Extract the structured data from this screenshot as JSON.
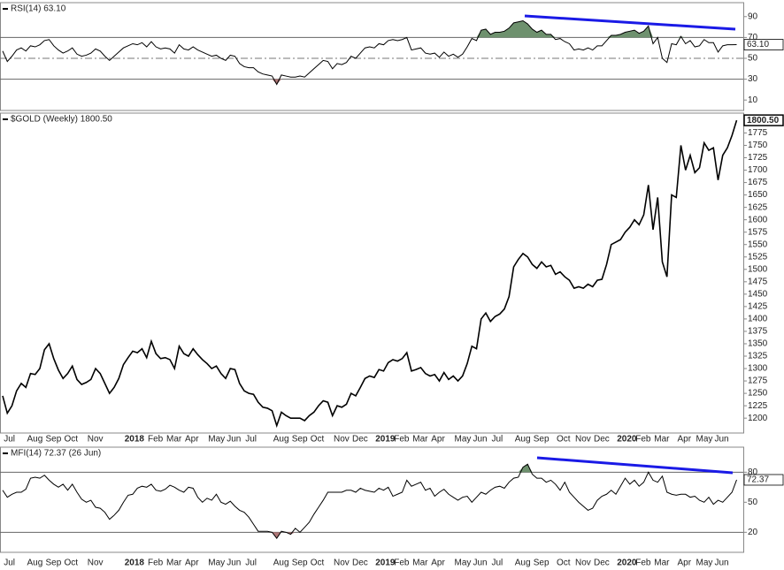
{
  "chart_data": [
    {
      "type": "line",
      "title": "RSI(14) 63.10",
      "last_value_label": "63.10",
      "color": "#000000",
      "ylim": [
        0,
        100
      ],
      "yticks": [
        10,
        30,
        50,
        70,
        90
      ],
      "overbought": 70,
      "midline": 50,
      "oversold": 30,
      "over_color": "#6e916e",
      "under_color": "#b07878",
      "values": [
        57,
        47,
        52,
        58,
        60,
        57,
        62,
        61,
        63,
        67,
        68,
        62,
        58,
        55,
        57,
        60,
        54,
        52,
        53,
        55,
        59,
        57,
        52,
        48,
        52,
        56,
        60,
        62,
        64,
        63,
        65,
        61,
        66,
        61,
        59,
        60,
        59,
        55,
        63,
        59,
        58,
        61,
        58,
        56,
        54,
        52,
        53,
        50,
        48,
        53,
        52,
        45,
        42,
        41,
        41,
        37,
        35,
        34,
        33,
        25,
        34,
        33,
        32,
        32,
        33,
        32,
        36,
        40,
        44,
        48,
        47,
        40,
        45,
        44,
        46,
        52,
        50,
        55,
        60,
        61,
        60,
        64,
        63,
        67,
        68,
        67,
        68,
        70,
        58,
        59,
        60,
        55,
        54,
        55,
        51,
        56,
        52,
        54,
        51,
        54,
        61,
        69,
        67,
        77,
        78,
        73,
        75,
        75,
        76,
        79,
        84,
        85,
        86,
        83,
        78,
        75,
        77,
        73,
        73,
        68,
        69,
        66,
        64,
        58,
        59,
        58,
        60,
        58,
        62,
        62,
        67,
        72,
        72,
        73,
        75,
        76,
        77,
        74,
        76,
        81,
        64,
        70,
        50,
        46,
        64,
        63,
        71,
        64,
        67,
        61,
        62,
        68,
        65,
        65,
        56,
        62,
        63,
        63,
        63.1
      ]
    },
    {
      "type": "line",
      "title": "$GOLD (Weekly) 1800.50",
      "last_value_label": "1800.50",
      "color": "#000000",
      "ylim": [
        1170,
        1815
      ],
      "yticks": [
        1200,
        1225,
        1250,
        1275,
        1300,
        1325,
        1350,
        1375,
        1400,
        1425,
        1450,
        1475,
        1500,
        1525,
        1550,
        1575,
        1600,
        1625,
        1650,
        1675,
        1700,
        1725,
        1750,
        1775
      ],
      "categories": [
        null,
        "Jul",
        null,
        null,
        null,
        null,
        "Aug",
        null,
        null,
        null,
        "Sep",
        null,
        null,
        null,
        "Oct",
        null,
        null,
        null,
        null,
        "Nov",
        null,
        null,
        null,
        null,
        null,
        null,
        null,
        "2018",
        null,
        null,
        null,
        null,
        "Feb",
        null,
        null,
        null,
        "Mar",
        null,
        null,
        null,
        "Apr",
        null,
        null,
        null,
        null,
        "May",
        null,
        null,
        null,
        "Jun",
        null,
        null,
        null,
        "Jul",
        null,
        null,
        null,
        null,
        null,
        "Aug",
        null,
        null,
        null,
        "Sep",
        null,
        null,
        null,
        "Oct",
        null,
        null,
        null,
        null,
        "Nov",
        null,
        null,
        null,
        "Dec",
        null,
        null,
        null,
        null,
        "2019",
        null,
        null,
        null,
        "Feb",
        null,
        null,
        null,
        "Mar",
        null,
        null,
        null,
        "Apr",
        null,
        null,
        null,
        null,
        "May",
        null,
        null,
        null,
        "Jun",
        null,
        null,
        null,
        "Jul",
        null,
        null,
        null,
        null,
        "Aug",
        null,
        null,
        null,
        "Sep",
        null,
        null,
        null,
        null,
        "Oct",
        null,
        null,
        null,
        "Nov",
        null,
        null,
        null,
        "Dec",
        null,
        null,
        null,
        null,
        "2020",
        null,
        null,
        null,
        "Feb",
        null,
        null,
        null,
        "Mar",
        null,
        null,
        null,
        null,
        "Apr",
        null,
        null,
        null,
        "May",
        null,
        null,
        null,
        "Jun",
        null,
        null,
        null,
        null
      ],
      "values": [
        1245,
        1210,
        1225,
        1255,
        1270,
        1262,
        1290,
        1288,
        1300,
        1338,
        1350,
        1320,
        1297,
        1280,
        1290,
        1305,
        1278,
        1268,
        1272,
        1278,
        1300,
        1290,
        1270,
        1250,
        1262,
        1280,
        1308,
        1322,
        1335,
        1332,
        1340,
        1322,
        1355,
        1330,
        1320,
        1322,
        1318,
        1300,
        1345,
        1330,
        1325,
        1340,
        1328,
        1318,
        1310,
        1300,
        1305,
        1290,
        1280,
        1300,
        1298,
        1270,
        1255,
        1250,
        1248,
        1232,
        1222,
        1220,
        1215,
        1185,
        1212,
        1205,
        1200,
        1200,
        1200,
        1195,
        1205,
        1212,
        1225,
        1235,
        1232,
        1205,
        1225,
        1222,
        1228,
        1250,
        1245,
        1262,
        1280,
        1285,
        1282,
        1298,
        1295,
        1312,
        1318,
        1315,
        1320,
        1332,
        1295,
        1298,
        1302,
        1290,
        1285,
        1288,
        1275,
        1292,
        1278,
        1285,
        1275,
        1285,
        1310,
        1345,
        1340,
        1400,
        1412,
        1395,
        1405,
        1410,
        1420,
        1445,
        1505,
        1520,
        1532,
        1525,
        1510,
        1502,
        1515,
        1505,
        1508,
        1490,
        1495,
        1485,
        1478,
        1462,
        1465,
        1462,
        1470,
        1465,
        1478,
        1480,
        1510,
        1550,
        1555,
        1560,
        1575,
        1585,
        1600,
        1590,
        1610,
        1670,
        1580,
        1645,
        1515,
        1485,
        1650,
        1645,
        1750,
        1700,
        1730,
        1695,
        1705,
        1755,
        1740,
        1745,
        1680,
        1730,
        1745,
        1770,
        1800.5
      ]
    },
    {
      "type": "line",
      "title": "MFI(14) 72.37 (26 Jun)",
      "last_value_label": "72.37",
      "color": "#000000",
      "ylim": [
        0,
        105
      ],
      "yticks": [
        20,
        50,
        80
      ],
      "overbought": 80,
      "oversold": 20,
      "over_color": "#6e916e",
      "under_color": "#b07878",
      "categories": [
        null,
        "Jul",
        null,
        null,
        null,
        null,
        "Aug",
        null,
        null,
        null,
        "Sep",
        null,
        null,
        null,
        "Oct",
        null,
        null,
        null,
        null,
        "Nov",
        null,
        null,
        null,
        null,
        null,
        null,
        null,
        "2018",
        null,
        null,
        null,
        null,
        "Feb",
        null,
        null,
        null,
        "Mar",
        null,
        null,
        null,
        "Apr",
        null,
        null,
        null,
        null,
        "May",
        null,
        null,
        null,
        "Jun",
        null,
        null,
        null,
        "Jul",
        null,
        null,
        null,
        null,
        null,
        "Aug",
        null,
        null,
        null,
        "Sep",
        null,
        null,
        null,
        "Oct",
        null,
        null,
        null,
        null,
        "Nov",
        null,
        null,
        null,
        "Dec",
        null,
        null,
        null,
        null,
        "2019",
        null,
        null,
        null,
        "Feb",
        null,
        null,
        null,
        "Mar",
        null,
        null,
        null,
        "Apr",
        null,
        null,
        null,
        null,
        "May",
        null,
        null,
        null,
        "Jun",
        null,
        null,
        null,
        "Jul",
        null,
        null,
        null,
        null,
        "Aug",
        null,
        null,
        null,
        "Sep",
        null,
        null,
        null,
        null,
        "Oct",
        null,
        null,
        null,
        "Nov",
        null,
        null,
        null,
        "Dec",
        null,
        null,
        null,
        null,
        "2020",
        null,
        null,
        null,
        "Feb",
        null,
        null,
        null,
        "Mar",
        null,
        null,
        null,
        null,
        "Apr",
        null,
        null,
        null,
        "May",
        null,
        null,
        null,
        "Jun",
        null,
        null,
        null,
        null
      ],
      "values": [
        62,
        55,
        58,
        60,
        60,
        63,
        74,
        75,
        74,
        77,
        72,
        68,
        65,
        68,
        62,
        68,
        60,
        53,
        50,
        52,
        45,
        44,
        40,
        33,
        37,
        42,
        50,
        57,
        58,
        64,
        66,
        65,
        68,
        62,
        61,
        63,
        67,
        65,
        62,
        60,
        65,
        64,
        55,
        50,
        54,
        52,
        58,
        50,
        48,
        51,
        46,
        42,
        40,
        35,
        28,
        21,
        21,
        21,
        20,
        14,
        21,
        20,
        18,
        24,
        20,
        25,
        30,
        38,
        45,
        52,
        60,
        60,
        60,
        60,
        62,
        62,
        60,
        64,
        62,
        61,
        60,
        64,
        62,
        65,
        56,
        58,
        60,
        72,
        66,
        68,
        70,
        62,
        64,
        56,
        60,
        63,
        58,
        55,
        52,
        55,
        56,
        50,
        55,
        60,
        58,
        62,
        65,
        66,
        64,
        70,
        74,
        75,
        85,
        88,
        78,
        74,
        74,
        70,
        72,
        68,
        62,
        70,
        60,
        55,
        50,
        46,
        42,
        44,
        52,
        56,
        58,
        62,
        58,
        66,
        74,
        68,
        72,
        66,
        70,
        80,
        72,
        70,
        76,
        60,
        58,
        57,
        58,
        58,
        55,
        56,
        52,
        50,
        55,
        48,
        52,
        50,
        55,
        60,
        72.37
      ]
    }
  ]
}
